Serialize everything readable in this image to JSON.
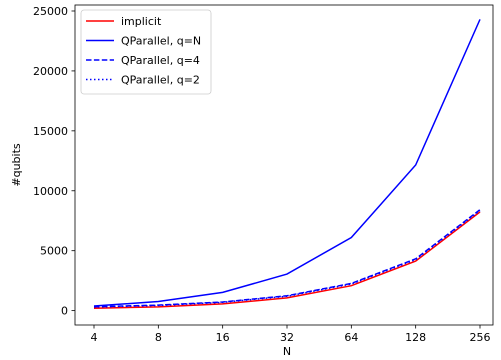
{
  "chart_data": {
    "type": "line",
    "xlabel": "N",
    "ylabel": "#qubits",
    "x": [
      4,
      8,
      16,
      32,
      64,
      128,
      256
    ],
    "x_tick_labels": [
      "4",
      "8",
      "16",
      "32",
      "64",
      "128",
      "256"
    ],
    "x_scale": "log2",
    "y_ticks": [
      0,
      5000,
      10000,
      15000,
      20000,
      25000
    ],
    "y_tick_labels": [
      "0",
      "5000",
      "10000",
      "15000",
      "20000",
      "25000"
    ],
    "ylim": [
      -1200,
      25500
    ],
    "grid": false,
    "legend_position": "top-left",
    "series": [
      {
        "name": "implicit",
        "color": "#ff0000",
        "linestyle": "solid",
        "values": [
          200,
          310,
          560,
          1060,
          2080,
          4130,
          8240
        ]
      },
      {
        "name": "QParallel, q=N",
        "color": "#0000ff",
        "linestyle": "solid",
        "values": [
          380,
          760,
          1520,
          3050,
          6100,
          12150,
          24300
        ]
      },
      {
        "name": "QParallel, q=4",
        "color": "#0000ff",
        "linestyle": "dashed",
        "values": [
          320,
          460,
          720,
          1240,
          2270,
          4320,
          8420
        ]
      },
      {
        "name": "QParallel, q=2",
        "color": "#0000ff",
        "linestyle": "dotted",
        "values": [
          300,
          430,
          690,
          1200,
          2220,
          4260,
          8350
        ]
      }
    ]
  }
}
